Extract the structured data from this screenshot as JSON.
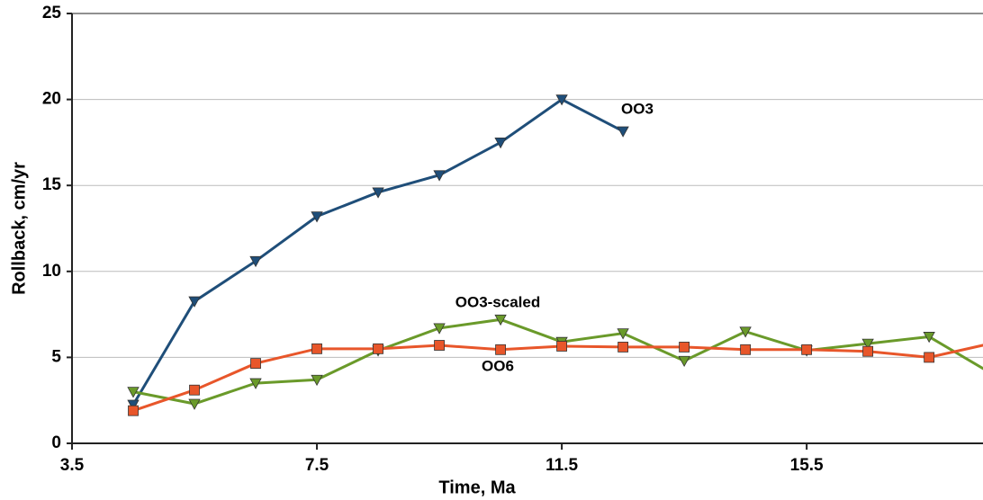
{
  "chart_data": {
    "type": "line",
    "x_label": "Time, Ma",
    "y_label": "Rollback, cm/yr",
    "x": [
      4.5,
      5.5,
      6.5,
      7.5,
      8.5,
      9.5,
      10.5,
      11.5,
      12.5,
      13.5,
      14.5,
      15.5,
      16.5,
      17.5,
      18.5
    ],
    "series": [
      {
        "name": "OO3",
        "color": "#1f4e79",
        "marker": "triangle-down",
        "values": [
          2.25,
          8.26,
          10.6,
          13.2,
          14.6,
          15.6,
          17.5,
          20.0,
          18.15,
          null,
          null,
          null,
          null,
          null,
          null
        ]
      },
      {
        "name": "OO3-scaled",
        "color": "#6a9a2a",
        "marker": "triangle-down",
        "values": [
          3.0,
          2.3,
          3.5,
          3.7,
          5.4,
          6.7,
          7.2,
          5.9,
          6.4,
          4.8,
          6.5,
          5.4,
          5.8,
          6.2,
          4.1
        ]
      },
      {
        "name": "OO6",
        "color": "#e8562a",
        "marker": "square",
        "values": [
          1.9,
          3.1,
          4.65,
          5.5,
          5.5,
          5.7,
          5.45,
          5.65,
          5.6,
          5.6,
          5.45,
          5.45,
          5.35,
          5.0,
          5.8
        ]
      }
    ],
    "xlim": [
      3.5,
      18.38
    ],
    "ylim": [
      0,
      25
    ],
    "xticks": [
      3.5,
      7.5,
      11.5,
      15.5
    ],
    "yticks": [
      0,
      5,
      10,
      15,
      20,
      25
    ],
    "grid": true
  }
}
